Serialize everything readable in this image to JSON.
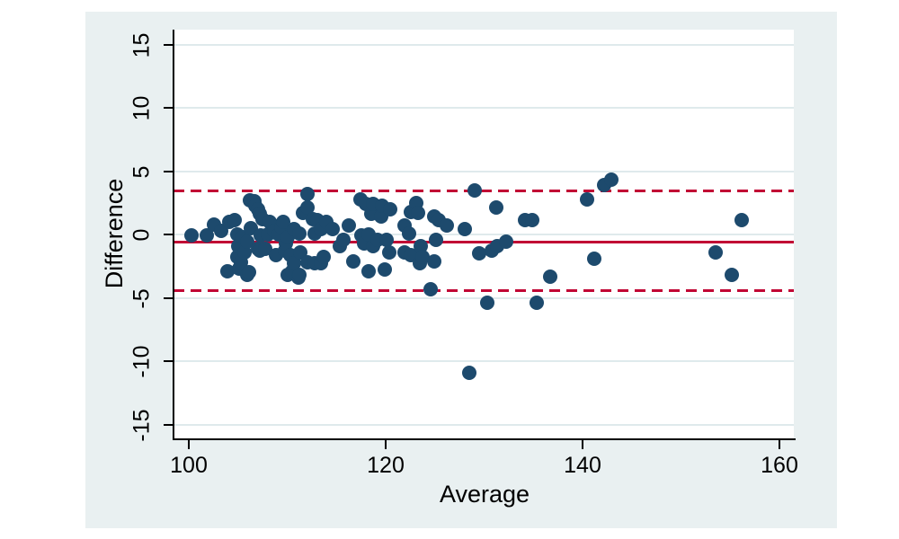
{
  "figure": {
    "background_color": "#e9f0f1",
    "plot_background_color": "#ffffff",
    "gridline_color": "#dfeaec",
    "axis_color": "#000000",
    "text_color": "#000000"
  },
  "chart_data": {
    "type": "scatter",
    "title": "",
    "xlabel": "Average",
    "ylabel": "Difference",
    "x_ticks": [
      100,
      120,
      140,
      160
    ],
    "y_ticks": [
      15,
      10,
      5,
      0,
      -5,
      -10,
      -15
    ],
    "xlim": [
      98.4,
      161.6
    ],
    "ylim": [
      -16.2,
      16.2
    ],
    "grid": true,
    "legend": "none",
    "marker_color": "#1d4a6d",
    "line_color": "#c10534",
    "reference_lines": {
      "mean": -0.55,
      "upper_loa": 3.45,
      "lower_loa": -4.4
    },
    "points": [
      [
        100.3,
        -0.1
      ],
      [
        101.8,
        -0.1
      ],
      [
        102.6,
        0.8
      ],
      [
        103.3,
        0.3
      ],
      [
        103.9,
        -2.9
      ],
      [
        104.1,
        1.0
      ],
      [
        104.7,
        1.1
      ],
      [
        104.9,
        0.0
      ],
      [
        104.9,
        -1.8
      ],
      [
        105.0,
        -0.9
      ],
      [
        105.1,
        -2.7
      ],
      [
        105.3,
        -2.2
      ],
      [
        105.5,
        -0.2
      ],
      [
        105.7,
        -1.4
      ],
      [
        105.9,
        -0.6
      ],
      [
        105.9,
        -3.2
      ],
      [
        106.1,
        -3.0
      ],
      [
        106.2,
        2.7
      ],
      [
        106.3,
        0.5
      ],
      [
        106.7,
        2.6
      ],
      [
        106.8,
        2.3
      ],
      [
        107.0,
        2.0
      ],
      [
        107.0,
        -1.1
      ],
      [
        107.2,
        1.6
      ],
      [
        107.2,
        -1.3
      ],
      [
        107.3,
        -0.1
      ],
      [
        107.5,
        1.2
      ],
      [
        107.8,
        -1.1
      ],
      [
        108.0,
        0.0
      ],
      [
        108.2,
        1.0
      ],
      [
        108.7,
        0.3
      ],
      [
        108.9,
        -1.6
      ],
      [
        109.1,
        0.0
      ],
      [
        109.4,
        0.6
      ],
      [
        109.6,
        1.0
      ],
      [
        109.8,
        -1.3
      ],
      [
        109.9,
        -0.7
      ],
      [
        110.0,
        -0.2
      ],
      [
        110.0,
        -3.2
      ],
      [
        110.3,
        -1.6
      ],
      [
        110.5,
        -2.9
      ],
      [
        110.7,
        0.4
      ],
      [
        110.7,
        -2.3
      ],
      [
        111.1,
        -3.4
      ],
      [
        111.2,
        0.1
      ],
      [
        111.2,
        -3.2
      ],
      [
        111.3,
        -1.4
      ],
      [
        111.6,
        1.7
      ],
      [
        112.1,
        3.2
      ],
      [
        112.1,
        2.1
      ],
      [
        112.1,
        -2.2
      ],
      [
        112.6,
        1.2
      ],
      [
        112.8,
        0.1
      ],
      [
        112.8,
        -2.3
      ],
      [
        113.1,
        1.1
      ],
      [
        113.4,
        0.4
      ],
      [
        113.4,
        -2.3
      ],
      [
        113.7,
        -1.8
      ],
      [
        114.0,
        1.0
      ],
      [
        114.6,
        0.4
      ],
      [
        115.3,
        -0.9
      ],
      [
        115.7,
        -0.4
      ],
      [
        116.3,
        0.7
      ],
      [
        116.7,
        -2.1
      ],
      [
        117.4,
        2.8
      ],
      [
        117.5,
        -0.1
      ],
      [
        117.8,
        -0.7
      ],
      [
        118.0,
        2.4
      ],
      [
        118.3,
        0.0
      ],
      [
        118.3,
        -2.9
      ],
      [
        118.5,
        1.6
      ],
      [
        118.7,
        2.4
      ],
      [
        118.7,
        -0.9
      ],
      [
        119.2,
        -0.4
      ],
      [
        119.5,
        1.4
      ],
      [
        119.6,
        2.3
      ],
      [
        119.9,
        -2.8
      ],
      [
        120.1,
        -0.4
      ],
      [
        120.4,
        -1.4
      ],
      [
        120.5,
        2.0
      ],
      [
        121.9,
        0.7
      ],
      [
        121.9,
        -1.4
      ],
      [
        122.4,
        0.1
      ],
      [
        122.6,
        1.8
      ],
      [
        122.6,
        -1.6
      ],
      [
        123.1,
        2.5
      ],
      [
        123.3,
        1.7
      ],
      [
        123.5,
        -2.3
      ],
      [
        123.6,
        -0.9
      ],
      [
        123.7,
        -1.8
      ],
      [
        124.6,
        -4.3
      ],
      [
        124.9,
        1.4
      ],
      [
        124.9,
        -2.1
      ],
      [
        125.1,
        -0.4
      ],
      [
        125.4,
        1.1
      ],
      [
        126.2,
        0.7
      ],
      [
        128.0,
        0.4
      ],
      [
        128.5,
        -10.9
      ],
      [
        129.0,
        3.5
      ],
      [
        129.5,
        -1.5
      ],
      [
        130.3,
        -5.4
      ],
      [
        130.8,
        -1.3
      ],
      [
        131.2,
        2.1
      ],
      [
        131.3,
        -0.9
      ],
      [
        132.2,
        -0.6
      ],
      [
        134.2,
        1.1
      ],
      [
        134.9,
        1.1
      ],
      [
        135.3,
        -5.4
      ],
      [
        136.7,
        -3.3
      ],
      [
        140.5,
        2.8
      ],
      [
        141.2,
        -1.9
      ],
      [
        142.2,
        3.9
      ],
      [
        142.9,
        4.3
      ],
      [
        153.5,
        -1.4
      ],
      [
        155.2,
        -3.2
      ],
      [
        156.2,
        1.1
      ]
    ]
  }
}
